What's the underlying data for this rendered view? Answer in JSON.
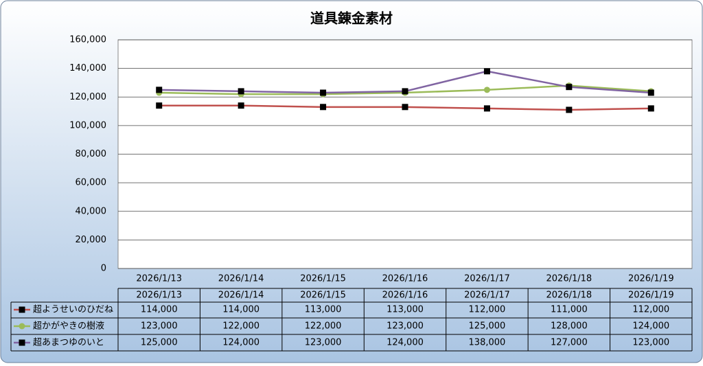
{
  "chart_data": {
    "type": "line",
    "title": "道具錬金素材",
    "categories": [
      "2026/1/13",
      "2026/1/14",
      "2026/1/15",
      "2026/1/16",
      "2026/1/17",
      "2026/1/18",
      "2026/1/19"
    ],
    "series": [
      {
        "name": "超ようせいのひだね",
        "color": "#c0504d",
        "marker": "square",
        "marker_color": "#000000",
        "values": [
          114000,
          114000,
          113000,
          113000,
          112000,
          111000,
          112000
        ],
        "value_labels": [
          "114,000",
          "114,000",
          "113,000",
          "113,000",
          "112,000",
          "111,000",
          "112,000"
        ]
      },
      {
        "name": "超かがやきの樹液",
        "color": "#9bbb59",
        "marker": "circle",
        "marker_color": "#9bbb59",
        "values": [
          123000,
          122000,
          122000,
          123000,
          125000,
          128000,
          124000
        ],
        "value_labels": [
          "123,000",
          "122,000",
          "122,000",
          "123,000",
          "125,000",
          "128,000",
          "124,000"
        ]
      },
      {
        "name": "超あまつゆのいと",
        "color": "#8064a2",
        "marker": "square",
        "marker_color": "#000000",
        "values": [
          125000,
          124000,
          123000,
          124000,
          138000,
          127000,
          123000
        ],
        "value_labels": [
          "125,000",
          "124,000",
          "123,000",
          "124,000",
          "138,000",
          "127,000",
          "123,000"
        ]
      }
    ],
    "ylim": [
      0,
      160000
    ],
    "yticks": [
      0,
      {
        "value": 20000,
        "label": "20,000"
      },
      {
        "value": 40000,
        "label": "40,000"
      },
      {
        "value": 60000,
        "label": "60,000"
      },
      {
        "value": 80000,
        "label": "80,000"
      },
      {
        "value": 100000,
        "label": "100,000"
      },
      {
        "value": 120000,
        "label": "120,000"
      },
      {
        "value": 140000,
        "label": "140,000"
      },
      {
        "value": 160000,
        "label": "160,000"
      }
    ],
    "grid": true,
    "data_table": true
  }
}
